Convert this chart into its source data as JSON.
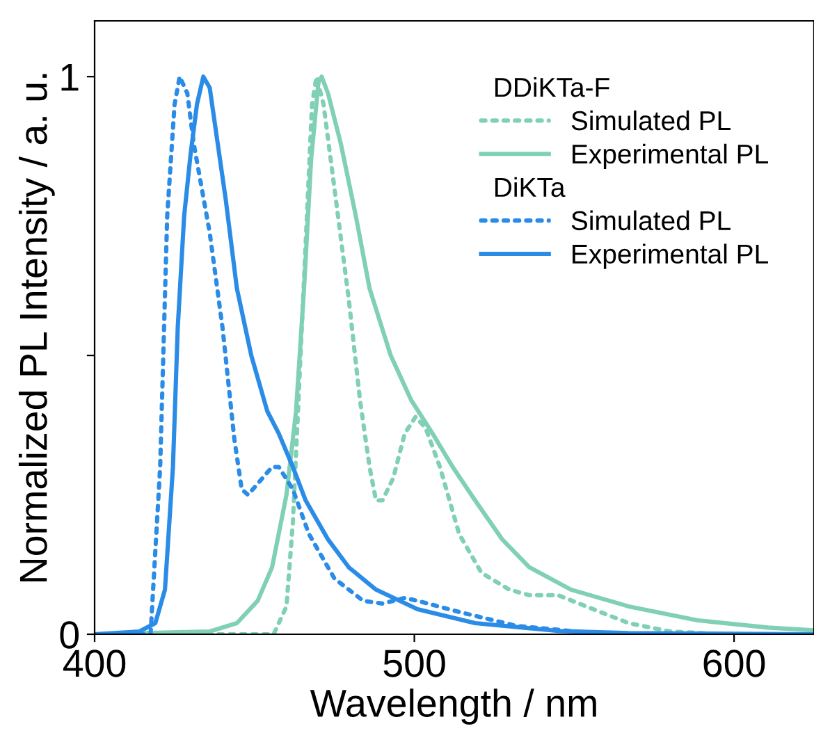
{
  "chart_data": {
    "type": "line",
    "xlabel": "Wavelength / nm",
    "ylabel": "Normalized PL Intensity / a. u.",
    "xlim": [
      400,
      625
    ],
    "ylim": [
      0,
      1.1
    ],
    "xticks": [
      400,
      500,
      600
    ],
    "yticks": [
      0,
      {
        "value": 0.5,
        "label": null
      },
      1
    ],
    "grid": false,
    "legend": "top right",
    "marker": "none",
    "annotations": [
      "DDiKTa-F",
      "DiKTa"
    ],
    "series": [
      {
        "name": "Simulated PL",
        "color": "#80d0b6",
        "line_style": "dotted",
        "x": [
          400,
          456,
          460,
          462,
          464,
          466,
          468,
          469.4,
          471.6,
          475,
          479.5,
          483,
          486,
          488,
          490,
          493.4,
          497,
          500.4,
          503.5,
          508,
          514,
          521,
          529.7,
          536,
          545,
          553.7,
          567,
          580,
          597,
          625
        ],
        "values": [
          0,
          0,
          0.05,
          0.2,
          0.45,
          0.7,
          0.95,
          1.0,
          0.95,
          0.8,
          0.6,
          0.42,
          0.3,
          0.24,
          0.24,
          0.28,
          0.36,
          0.39,
          0.37,
          0.3,
          0.18,
          0.11,
          0.08,
          0.07,
          0.07,
          0.05,
          0.02,
          0.005,
          0,
          0
        ]
      },
      {
        "name": "Experimental PL",
        "color": "#80d0b6",
        "line_style": "solid",
        "x": [
          400,
          436,
          444.5,
          451,
          455.5,
          460,
          463,
          465.5,
          467.7,
          470,
          471,
          473,
          477,
          481.7,
          486,
          492.6,
          499,
          505.7,
          512,
          519,
          527.5,
          536,
          549,
          567,
          588.6,
          610.5,
          625
        ],
        "values": [
          0,
          0.005,
          0.02,
          0.06,
          0.12,
          0.25,
          0.4,
          0.62,
          0.85,
          0.99,
          1.0,
          0.97,
          0.88,
          0.75,
          0.62,
          0.5,
          0.42,
          0.36,
          0.3,
          0.24,
          0.17,
          0.12,
          0.08,
          0.05,
          0.025,
          0.012,
          0.007
        ]
      },
      {
        "name": "Simulated PL",
        "color": "#2b8ce8",
        "line_style": "dotted",
        "x": [
          400,
          417.5,
          420.5,
          422.7,
          425,
          426.6,
          429,
          431,
          436,
          440,
          443.7,
          446,
          448,
          451,
          455.5,
          457.6,
          462,
          467,
          475,
          484,
          490,
          497,
          501,
          514,
          532,
          554,
          570,
          625
        ],
        "values": [
          0,
          0,
          0.3,
          0.75,
          0.95,
          1.0,
          0.97,
          0.88,
          0.72,
          0.55,
          0.35,
          0.26,
          0.25,
          0.27,
          0.3,
          0.3,
          0.26,
          0.18,
          0.1,
          0.06,
          0.055,
          0.065,
          0.06,
          0.04,
          0.015,
          0.003,
          0,
          0
        ]
      },
      {
        "name": "Experimental PL",
        "color": "#2b8ce8",
        "line_style": "solid",
        "x": [
          400,
          414,
          419,
          422,
          424.5,
          426,
          428,
          430,
          432,
          434,
          436,
          438,
          441,
          444.5,
          449,
          454,
          457.6,
          462,
          466,
          473,
          479.5,
          488,
          501,
          519,
          545,
          567,
          625
        ],
        "values": [
          0,
          0.005,
          0.02,
          0.08,
          0.3,
          0.55,
          0.75,
          0.86,
          0.95,
          1.0,
          0.98,
          0.9,
          0.78,
          0.62,
          0.5,
          0.4,
          0.36,
          0.3,
          0.24,
          0.17,
          0.12,
          0.08,
          0.045,
          0.02,
          0.006,
          0.002,
          0
        ]
      }
    ]
  }
}
